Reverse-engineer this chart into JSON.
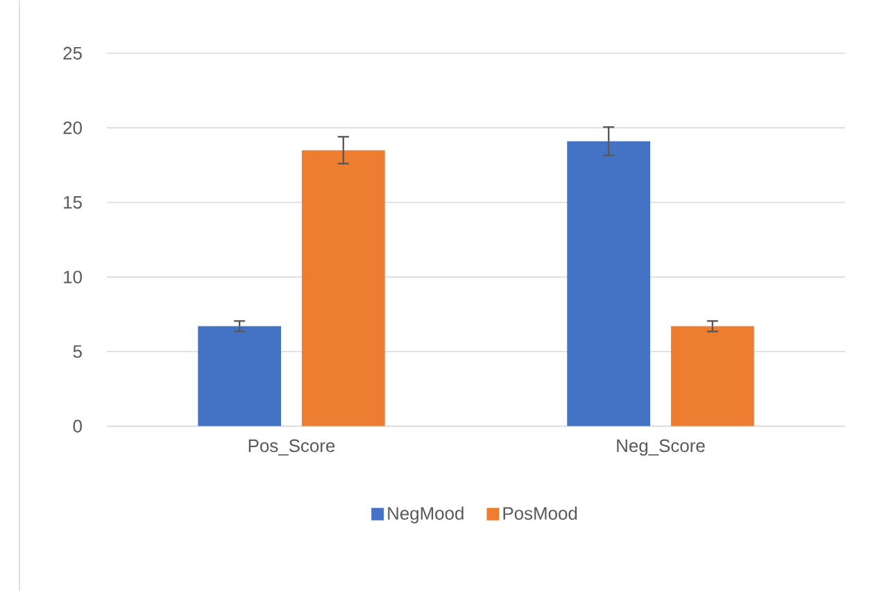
{
  "chart_data": {
    "type": "bar",
    "categories": [
      "Pos_Score",
      "Neg_Score"
    ],
    "series": [
      {
        "name": "NegMood",
        "color": "#4472c4",
        "values": [
          6.7,
          19.1
        ],
        "errors": [
          0.35,
          0.95
        ]
      },
      {
        "name": "PosMood",
        "color": "#ed7d31",
        "values": [
          18.5,
          6.7
        ],
        "errors": [
          0.9,
          0.35
        ]
      }
    ],
    "ylim": [
      0,
      25
    ],
    "yticks": [
      0,
      5,
      10,
      15,
      20,
      25
    ],
    "grid": "y",
    "legend": "bottom"
  }
}
